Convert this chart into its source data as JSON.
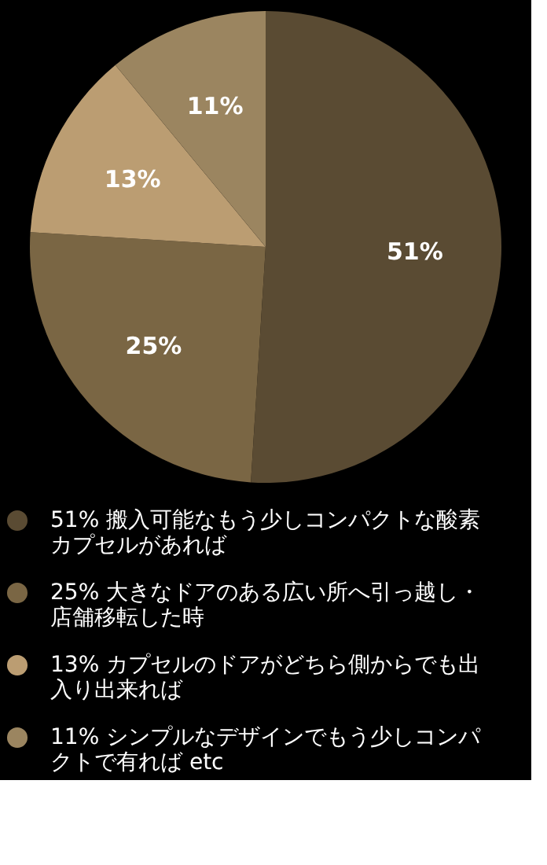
{
  "chart_data": {
    "type": "pie",
    "categories": [
      "搬入可能なもう少しコンパクトな酸素カプセルがあれば",
      "大きなドアのある広い所へ引っ越し・店舗移転した時",
      "カプセルのドアがどちら側からでも出入り出来れば",
      "シンプルなデザインでもう少しコンパクトで有れば etc"
    ],
    "values": [
      51,
      25,
      13,
      11
    ],
    "value_labels": [
      "51%",
      "25%",
      "13%",
      "11%"
    ],
    "colors": [
      "#5a4b33",
      "#7a6644",
      "#bb9d72",
      "#9b8560"
    ],
    "legend": "bottom"
  }
}
